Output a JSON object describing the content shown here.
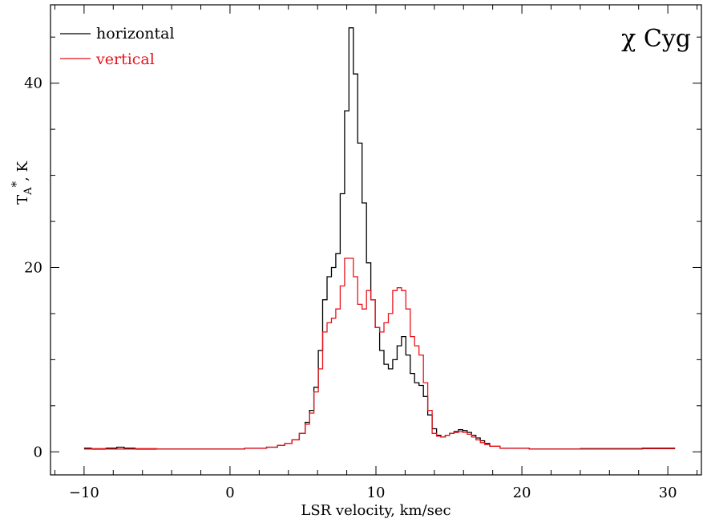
{
  "chart_data": {
    "type": "line",
    "title": "χ Cyg",
    "xlabel": "LSR velocity, km/sec",
    "ylabel": "T_A*, K",
    "xlim": [
      -12.3,
      32.3
    ],
    "ylim": [
      -2.5,
      48.5
    ],
    "x_ticks": [
      -10,
      0,
      10,
      20,
      30
    ],
    "x_tick_labels": [
      "−10",
      "0",
      "10",
      "20",
      "30"
    ],
    "y_ticks": [
      0,
      20,
      40
    ],
    "y_tick_labels": [
      "0",
      "20",
      "40"
    ],
    "x_minor_step": 2,
    "y_minor_step": 5,
    "legend_position": "top-left",
    "grid": false,
    "step": "histogram",
    "series": [
      {
        "name": "horizontal",
        "color": "#000000",
        "points": [
          [
            -10,
            0.4
          ],
          [
            -9,
            0.3
          ],
          [
            -8,
            0.4
          ],
          [
            -7.5,
            0.5
          ],
          [
            -7,
            0.4
          ],
          [
            -6,
            0.3
          ],
          [
            -4,
            0.3
          ],
          [
            -2,
            0.3
          ],
          [
            0,
            0.3
          ],
          [
            2,
            0.4
          ],
          [
            3,
            0.5
          ],
          [
            3.5,
            0.7
          ],
          [
            4,
            0.9
          ],
          [
            4.5,
            1.3
          ],
          [
            5,
            2.0
          ],
          [
            5.3,
            3.2
          ],
          [
            5.6,
            4.5
          ],
          [
            5.9,
            7.0
          ],
          [
            6.2,
            11.0
          ],
          [
            6.5,
            16.5
          ],
          [
            6.8,
            19.0
          ],
          [
            7.1,
            20.0
          ],
          [
            7.4,
            21.5
          ],
          [
            7.7,
            28.0
          ],
          [
            8.0,
            37.0
          ],
          [
            8.3,
            46.0
          ],
          [
            8.6,
            41.0
          ],
          [
            8.9,
            33.5
          ],
          [
            9.2,
            27.0
          ],
          [
            9.5,
            20.5
          ],
          [
            9.8,
            16.5
          ],
          [
            10.1,
            13.5
          ],
          [
            10.4,
            11.0
          ],
          [
            10.7,
            9.5
          ],
          [
            11.0,
            9.0
          ],
          [
            11.3,
            10.0
          ],
          [
            11.6,
            11.5
          ],
          [
            11.9,
            12.5
          ],
          [
            12.2,
            10.5
          ],
          [
            12.5,
            8.5
          ],
          [
            12.8,
            7.5
          ],
          [
            13.1,
            7.2
          ],
          [
            13.4,
            6.0
          ],
          [
            13.7,
            4.0
          ],
          [
            14.0,
            2.5
          ],
          [
            14.3,
            1.8
          ],
          [
            14.6,
            1.6
          ],
          [
            14.9,
            1.8
          ],
          [
            15.2,
            2.0
          ],
          [
            15.5,
            2.2
          ],
          [
            15.8,
            2.4
          ],
          [
            16.1,
            2.3
          ],
          [
            16.4,
            2.1
          ],
          [
            16.7,
            1.8
          ],
          [
            17.0,
            1.5
          ],
          [
            17.3,
            1.2
          ],
          [
            17.6,
            0.9
          ],
          [
            18.0,
            0.6
          ],
          [
            19,
            0.4
          ],
          [
            22,
            0.3
          ],
          [
            26,
            0.35
          ],
          [
            30.5,
            0.4
          ]
        ]
      },
      {
        "name": "vertical",
        "color": "#e8131b",
        "points": [
          [
            -10,
            0.3
          ],
          [
            -9,
            0.35
          ],
          [
            -8,
            0.3
          ],
          [
            -7,
            0.3
          ],
          [
            -6,
            0.35
          ],
          [
            -4,
            0.3
          ],
          [
            -2,
            0.3
          ],
          [
            0,
            0.3
          ],
          [
            2,
            0.4
          ],
          [
            3,
            0.5
          ],
          [
            3.5,
            0.7
          ],
          [
            4,
            0.9
          ],
          [
            4.5,
            1.3
          ],
          [
            5,
            2.0
          ],
          [
            5.3,
            3.0
          ],
          [
            5.6,
            4.2
          ],
          [
            5.9,
            6.5
          ],
          [
            6.2,
            9.0
          ],
          [
            6.5,
            13.0
          ],
          [
            6.8,
            14.0
          ],
          [
            7.1,
            14.5
          ],
          [
            7.4,
            15.5
          ],
          [
            7.7,
            18.0
          ],
          [
            8.0,
            21.0
          ],
          [
            8.3,
            21.0
          ],
          [
            8.6,
            19.0
          ],
          [
            8.9,
            16.0
          ],
          [
            9.2,
            15.5
          ],
          [
            9.5,
            17.5
          ],
          [
            9.8,
            16.5
          ],
          [
            10.1,
            13.5
          ],
          [
            10.4,
            13.0
          ],
          [
            10.7,
            14.0
          ],
          [
            11.0,
            15.0
          ],
          [
            11.3,
            17.5
          ],
          [
            11.6,
            17.8
          ],
          [
            11.9,
            17.5
          ],
          [
            12.2,
            15.5
          ],
          [
            12.5,
            12.5
          ],
          [
            12.8,
            11.5
          ],
          [
            13.1,
            10.5
          ],
          [
            13.4,
            7.5
          ],
          [
            13.7,
            4.5
          ],
          [
            14.0,
            2.0
          ],
          [
            14.3,
            1.7
          ],
          [
            14.6,
            1.6
          ],
          [
            14.9,
            1.8
          ],
          [
            15.2,
            2.0
          ],
          [
            15.5,
            2.1
          ],
          [
            15.8,
            2.2
          ],
          [
            16.1,
            2.1
          ],
          [
            16.4,
            1.9
          ],
          [
            16.7,
            1.6
          ],
          [
            17.0,
            1.3
          ],
          [
            17.3,
            1.0
          ],
          [
            17.6,
            0.8
          ],
          [
            18.0,
            0.6
          ],
          [
            19,
            0.4
          ],
          [
            22,
            0.3
          ],
          [
            26,
            0.3
          ],
          [
            30.5,
            0.35
          ]
        ]
      }
    ]
  }
}
